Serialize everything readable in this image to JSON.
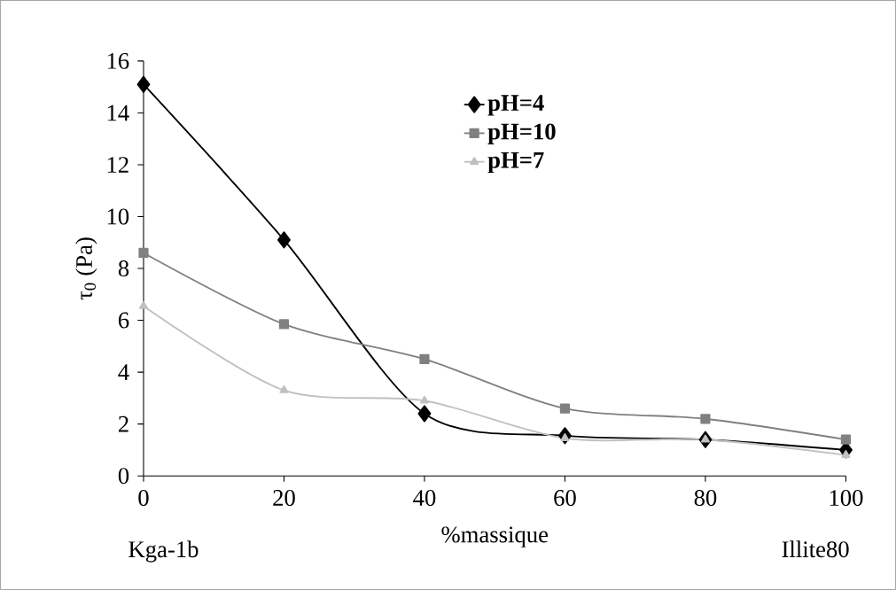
{
  "chart_data": {
    "type": "line",
    "ylabel": "τ$_{0}$ (Pa)",
    "xlabel": "%massique",
    "annotations": [
      "Kga-1b",
      "Illite80"
    ],
    "x": [
      0,
      20,
      40,
      60,
      80,
      100
    ],
    "xlim": [
      0,
      100
    ],
    "xticks": [
      0,
      20,
      40,
      60,
      80,
      100
    ],
    "ylim": [
      0,
      16
    ],
    "yticks": [
      0,
      2,
      4,
      6,
      8,
      10,
      12,
      14,
      16
    ],
    "grid": false,
    "legend": "top right",
    "line_style": "solid",
    "series": [
      {
        "name": "pH=4",
        "color": "#000000",
        "marker": "diamond",
        "values": [
          15.1,
          9.1,
          2.4,
          1.55,
          1.4,
          1.0
        ]
      },
      {
        "name": "pH=10",
        "color": "#808080",
        "marker": "square",
        "values": [
          8.6,
          5.85,
          4.5,
          2.6,
          2.2,
          1.4
        ]
      },
      {
        "name": "pH=7",
        "color": "#c0c0c0",
        "marker": "triangle",
        "values": [
          6.55,
          3.3,
          2.9,
          1.45,
          1.4,
          0.8
        ]
      }
    ]
  }
}
